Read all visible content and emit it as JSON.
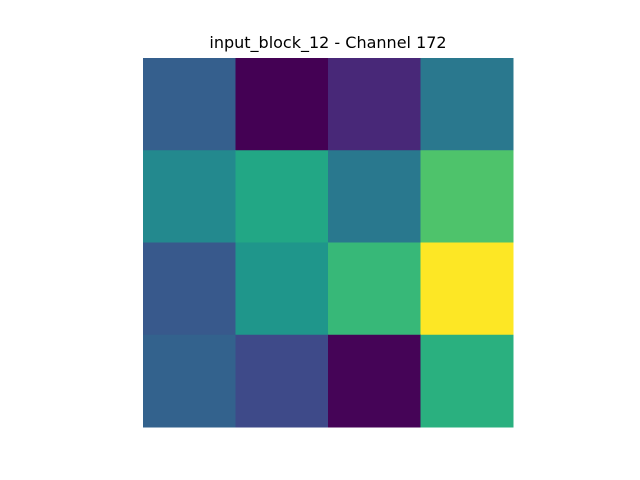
{
  "chart_data": {
    "type": "heatmap",
    "title": "input_block_12 - Channel 172",
    "xlabel": "",
    "ylabel": "",
    "grid": false,
    "colormap": "viridis",
    "rows": 4,
    "cols": 4,
    "colors": [
      [
        "#355F8D",
        "#440154",
        "#482878",
        "#2A788E"
      ],
      [
        "#23898E",
        "#22A785",
        "#29788E",
        "#4EC36B"
      ],
      [
        "#38598C",
        "#1F968B",
        "#37B878",
        "#FDE725"
      ],
      [
        "#33628D",
        "#3E4A89",
        "#450457",
        "#2AB07F"
      ]
    ]
  }
}
